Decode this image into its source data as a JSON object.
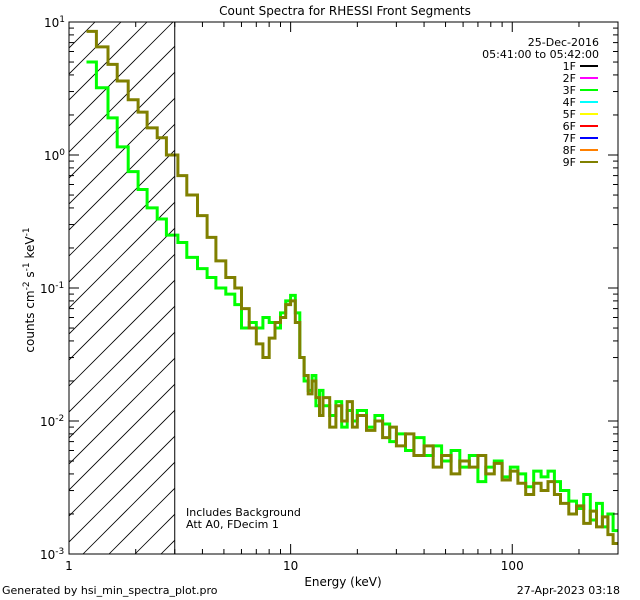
{
  "chart_data": {
    "type": "line",
    "title": "Count Spectra for RHESSI Front Segments",
    "xlabel": "Energy (keV)",
    "ylabel_main": "counts cm",
    "ylabel_exp1": "-2",
    "ylabel_mid1": " s",
    "ylabel_exp2": "-1",
    "ylabel_mid2": " keV",
    "ylabel_exp3": "-1",
    "xscale": "log",
    "yscale": "log",
    "xlim": [
      1,
      300
    ],
    "ylim": [
      0.001,
      10
    ],
    "x_ticks": [
      {
        "value": 1,
        "label": "1"
      },
      {
        "value": 10,
        "label": "10"
      },
      {
        "value": 100,
        "label": "100"
      }
    ],
    "y_ticks": [
      {
        "value": 10,
        "label_base": "10",
        "label_exp": "1"
      },
      {
        "value": 1,
        "label_base": "10",
        "label_exp": "0"
      },
      {
        "value": 0.1,
        "label_base": "10",
        "label_exp": "-1"
      },
      {
        "value": 0.01,
        "label_base": "10",
        "label_exp": "-2"
      },
      {
        "value": 0.001,
        "label_base": "10",
        "label_exp": "-3"
      }
    ],
    "date": "25-Dec-2016",
    "time_range": "05:41:00 to 05:42:00",
    "attenuator_cutoff_keV": 3,
    "annotations": [
      "Includes Background",
      "Att A0, FDecim 1"
    ],
    "legend": [
      {
        "name": "1F",
        "color": "#000000"
      },
      {
        "name": "2F",
        "color": "#ff00ff"
      },
      {
        "name": "3F",
        "color": "#00ff00"
      },
      {
        "name": "4F",
        "color": "#00ffff"
      },
      {
        "name": "5F",
        "color": "#ffff00"
      },
      {
        "name": "6F",
        "color": "#ff0000"
      },
      {
        "name": "7F",
        "color": "#0000ff"
      },
      {
        "name": "8F",
        "color": "#ff8000"
      },
      {
        "name": "9F",
        "color": "#808000"
      }
    ],
    "series": [
      {
        "name": "3F",
        "color": "#00ff00",
        "points": [
          [
            1.2,
            5.0
          ],
          [
            1.33,
            5.0
          ],
          [
            1.33,
            3.2
          ],
          [
            1.5,
            3.2
          ],
          [
            1.5,
            1.9
          ],
          [
            1.65,
            1.9
          ],
          [
            1.65,
            1.15
          ],
          [
            1.85,
            1.15
          ],
          [
            1.85,
            0.75
          ],
          [
            2.05,
            0.75
          ],
          [
            2.05,
            0.55
          ],
          [
            2.25,
            0.55
          ],
          [
            2.25,
            0.4
          ],
          [
            2.5,
            0.4
          ],
          [
            2.5,
            0.33
          ],
          [
            2.75,
            0.33
          ],
          [
            2.75,
            0.25
          ],
          [
            3.1,
            0.25
          ],
          [
            3.1,
            0.22
          ],
          [
            3.4,
            0.22
          ],
          [
            3.4,
            0.17
          ],
          [
            3.8,
            0.17
          ],
          [
            3.8,
            0.14
          ],
          [
            4.2,
            0.14
          ],
          [
            4.2,
            0.12
          ],
          [
            4.6,
            0.12
          ],
          [
            4.6,
            0.1
          ],
          [
            5.1,
            0.1
          ],
          [
            5.1,
            0.09
          ],
          [
            5.6,
            0.09
          ],
          [
            5.6,
            0.075
          ],
          [
            6.0,
            0.075
          ],
          [
            6.0,
            0.05
          ],
          [
            6.5,
            0.05
          ],
          [
            6.5,
            0.055
          ],
          [
            7.0,
            0.055
          ],
          [
            7.0,
            0.05
          ],
          [
            7.5,
            0.05
          ],
          [
            7.5,
            0.06
          ],
          [
            8.0,
            0.06
          ],
          [
            8.0,
            0.055
          ],
          [
            8.5,
            0.055
          ],
          [
            8.5,
            0.05
          ],
          [
            9.0,
            0.05
          ],
          [
            9.0,
            0.065
          ],
          [
            9.5,
            0.065
          ],
          [
            9.5,
            0.08
          ],
          [
            10.0,
            0.08
          ],
          [
            10.0,
            0.088
          ],
          [
            10.5,
            0.088
          ],
          [
            10.5,
            0.065
          ],
          [
            11.0,
            0.065
          ],
          [
            11.0,
            0.03
          ],
          [
            11.5,
            0.03
          ],
          [
            11.5,
            0.02
          ],
          [
            12.0,
            0.02
          ],
          [
            12.0,
            0.017
          ],
          [
            12.5,
            0.017
          ],
          [
            12.5,
            0.022
          ],
          [
            13.0,
            0.022
          ],
          [
            13.0,
            0.013
          ],
          [
            13.5,
            0.013
          ],
          [
            13.5,
            0.017
          ],
          [
            14.0,
            0.017
          ],
          [
            14.0,
            0.013
          ],
          [
            15.0,
            0.013
          ],
          [
            15.0,
            0.011
          ],
          [
            16.0,
            0.011
          ],
          [
            16.0,
            0.014
          ],
          [
            17.0,
            0.014
          ],
          [
            17.0,
            0.009
          ],
          [
            18.0,
            0.009
          ],
          [
            18.0,
            0.012
          ],
          [
            19.0,
            0.012
          ],
          [
            19.0,
            0.01
          ],
          [
            20.0,
            0.01
          ],
          [
            20.0,
            0.012
          ],
          [
            22.0,
            0.012
          ],
          [
            22.0,
            0.009
          ],
          [
            24.0,
            0.009
          ],
          [
            24.0,
            0.011
          ],
          [
            26.0,
            0.011
          ],
          [
            26.0,
            0.0095
          ],
          [
            28.0,
            0.0095
          ],
          [
            28.0,
            0.007
          ],
          [
            30.0,
            0.007
          ],
          [
            30.0,
            0.008
          ],
          [
            33.0,
            0.008
          ],
          [
            33.0,
            0.006
          ],
          [
            36.0,
            0.006
          ],
          [
            36.0,
            0.0075
          ],
          [
            40.0,
            0.0075
          ],
          [
            40.0,
            0.0055
          ],
          [
            44.0,
            0.0055
          ],
          [
            44.0,
            0.0065
          ],
          [
            48.0,
            0.0065
          ],
          [
            48.0,
            0.005
          ],
          [
            53.0,
            0.005
          ],
          [
            53.0,
            0.006
          ],
          [
            58.0,
            0.006
          ],
          [
            58.0,
            0.0045
          ],
          [
            64.0,
            0.0045
          ],
          [
            64.0,
            0.0055
          ],
          [
            70.0,
            0.0055
          ],
          [
            70.0,
            0.0035
          ],
          [
            76.0,
            0.0035
          ],
          [
            76.0,
            0.0045
          ],
          [
            83.0,
            0.0045
          ],
          [
            83.0,
            0.005
          ],
          [
            90.0,
            0.005
          ],
          [
            90.0,
            0.0038
          ],
          [
            98.0,
            0.0038
          ],
          [
            98.0,
            0.0045
          ],
          [
            106.0,
            0.0045
          ],
          [
            106.0,
            0.004
          ],
          [
            115.0,
            0.004
          ],
          [
            115.0,
            0.0032
          ],
          [
            125.0,
            0.0032
          ],
          [
            125.0,
            0.0042
          ],
          [
            135.0,
            0.0042
          ],
          [
            135.0,
            0.0038
          ],
          [
            145.0,
            0.0038
          ],
          [
            145.0,
            0.0042
          ],
          [
            155.0,
            0.0042
          ],
          [
            155.0,
            0.0035
          ],
          [
            165.0,
            0.0035
          ],
          [
            165.0,
            0.003
          ],
          [
            180.0,
            0.003
          ],
          [
            180.0,
            0.0025
          ],
          [
            195.0,
            0.0025
          ],
          [
            195.0,
            0.0022
          ],
          [
            210.0,
            0.0022
          ],
          [
            210.0,
            0.0028
          ],
          [
            225.0,
            0.0028
          ],
          [
            225.0,
            0.0018
          ],
          [
            240.0,
            0.0018
          ],
          [
            240.0,
            0.0024
          ],
          [
            255.0,
            0.0024
          ],
          [
            255.0,
            0.0016
          ],
          [
            270.0,
            0.0016
          ],
          [
            270.0,
            0.002
          ],
          [
            285.0,
            0.002
          ],
          [
            285.0,
            0.0015
          ],
          [
            300.0,
            0.0015
          ]
        ]
      },
      {
        "name": "9F",
        "color": "#808000",
        "points": [
          [
            1.2,
            8.5
          ],
          [
            1.33,
            8.5
          ],
          [
            1.33,
            6.5
          ],
          [
            1.5,
            6.5
          ],
          [
            1.5,
            4.8
          ],
          [
            1.65,
            4.8
          ],
          [
            1.65,
            3.6
          ],
          [
            1.85,
            3.6
          ],
          [
            1.85,
            2.6
          ],
          [
            2.05,
            2.6
          ],
          [
            2.05,
            2.1
          ],
          [
            2.25,
            2.1
          ],
          [
            2.25,
            1.6
          ],
          [
            2.5,
            1.6
          ],
          [
            2.5,
            1.35
          ],
          [
            2.75,
            1.35
          ],
          [
            2.75,
            1.0
          ],
          [
            3.1,
            1.0
          ],
          [
            3.1,
            0.7
          ],
          [
            3.4,
            0.7
          ],
          [
            3.4,
            0.5
          ],
          [
            3.8,
            0.5
          ],
          [
            3.8,
            0.35
          ],
          [
            4.2,
            0.35
          ],
          [
            4.2,
            0.24
          ],
          [
            4.6,
            0.24
          ],
          [
            4.6,
            0.16
          ],
          [
            5.1,
            0.16
          ],
          [
            5.1,
            0.12
          ],
          [
            5.6,
            0.12
          ],
          [
            5.6,
            0.1
          ],
          [
            6.0,
            0.1
          ],
          [
            6.0,
            0.07
          ],
          [
            6.5,
            0.07
          ],
          [
            6.5,
            0.05
          ],
          [
            7.0,
            0.05
          ],
          [
            7.0,
            0.038
          ],
          [
            7.5,
            0.038
          ],
          [
            7.5,
            0.03
          ],
          [
            8.0,
            0.03
          ],
          [
            8.0,
            0.042
          ],
          [
            8.5,
            0.042
          ],
          [
            8.5,
            0.055
          ],
          [
            9.0,
            0.055
          ],
          [
            9.0,
            0.06
          ],
          [
            9.5,
            0.06
          ],
          [
            9.5,
            0.075
          ],
          [
            10.0,
            0.075
          ],
          [
            10.0,
            0.08
          ],
          [
            10.5,
            0.08
          ],
          [
            10.5,
            0.055
          ],
          [
            11.0,
            0.055
          ],
          [
            11.0,
            0.03
          ],
          [
            11.5,
            0.03
          ],
          [
            11.5,
            0.022
          ],
          [
            12.0,
            0.022
          ],
          [
            12.0,
            0.016
          ],
          [
            12.5,
            0.016
          ],
          [
            12.5,
            0.02
          ],
          [
            13.0,
            0.02
          ],
          [
            13.0,
            0.015
          ],
          [
            13.5,
            0.015
          ],
          [
            13.5,
            0.011
          ],
          [
            14.0,
            0.011
          ],
          [
            14.0,
            0.015
          ],
          [
            15.0,
            0.015
          ],
          [
            15.0,
            0.009
          ],
          [
            16.0,
            0.009
          ],
          [
            16.0,
            0.013
          ],
          [
            17.0,
            0.013
          ],
          [
            17.0,
            0.01
          ],
          [
            18.0,
            0.01
          ],
          [
            18.0,
            0.014
          ],
          [
            19.0,
            0.014
          ],
          [
            19.0,
            0.009
          ],
          [
            20.0,
            0.009
          ],
          [
            20.0,
            0.011
          ],
          [
            22.0,
            0.011
          ],
          [
            22.0,
            0.0085
          ],
          [
            24.0,
            0.0085
          ],
          [
            24.0,
            0.01
          ],
          [
            26.0,
            0.01
          ],
          [
            26.0,
            0.0075
          ],
          [
            28.0,
            0.0075
          ],
          [
            28.0,
            0.009
          ],
          [
            30.0,
            0.009
          ],
          [
            30.0,
            0.0065
          ],
          [
            33.0,
            0.0065
          ],
          [
            33.0,
            0.008
          ],
          [
            36.0,
            0.008
          ],
          [
            36.0,
            0.0055
          ],
          [
            40.0,
            0.0055
          ],
          [
            40.0,
            0.0065
          ],
          [
            44.0,
            0.0065
          ],
          [
            44.0,
            0.0045
          ],
          [
            48.0,
            0.0045
          ],
          [
            48.0,
            0.0055
          ],
          [
            53.0,
            0.0055
          ],
          [
            53.0,
            0.004
          ],
          [
            58.0,
            0.004
          ],
          [
            58.0,
            0.005
          ],
          [
            64.0,
            0.005
          ],
          [
            64.0,
            0.0045
          ],
          [
            70.0,
            0.0045
          ],
          [
            70.0,
            0.0055
          ],
          [
            76.0,
            0.0055
          ],
          [
            76.0,
            0.004
          ],
          [
            83.0,
            0.004
          ],
          [
            83.0,
            0.0048
          ],
          [
            90.0,
            0.0048
          ],
          [
            90.0,
            0.0036
          ],
          [
            98.0,
            0.0036
          ],
          [
            98.0,
            0.0042
          ],
          [
            106.0,
            0.0042
          ],
          [
            106.0,
            0.0034
          ],
          [
            115.0,
            0.0034
          ],
          [
            115.0,
            0.0028
          ],
          [
            125.0,
            0.0028
          ],
          [
            125.0,
            0.0034
          ],
          [
            135.0,
            0.0034
          ],
          [
            135.0,
            0.003
          ],
          [
            145.0,
            0.003
          ],
          [
            145.0,
            0.0035
          ],
          [
            155.0,
            0.0035
          ],
          [
            155.0,
            0.0028
          ],
          [
            165.0,
            0.0028
          ],
          [
            165.0,
            0.0024
          ],
          [
            180.0,
            0.0024
          ],
          [
            180.0,
            0.002
          ],
          [
            195.0,
            0.002
          ],
          [
            195.0,
            0.0023
          ],
          [
            210.0,
            0.0023
          ],
          [
            210.0,
            0.0017
          ],
          [
            225.0,
            0.0017
          ],
          [
            225.0,
            0.0021
          ],
          [
            240.0,
            0.0021
          ],
          [
            240.0,
            0.0016
          ],
          [
            255.0,
            0.0016
          ],
          [
            255.0,
            0.0019
          ],
          [
            270.0,
            0.0019
          ],
          [
            270.0,
            0.0014
          ],
          [
            285.0,
            0.0014
          ],
          [
            285.0,
            0.0012
          ],
          [
            300.0,
            0.0012
          ]
        ]
      }
    ]
  },
  "footer": {
    "generated_by": "Generated by hsi_min_spectra_plot.pro",
    "generated_date": "27-Apr-2023 03:18"
  }
}
